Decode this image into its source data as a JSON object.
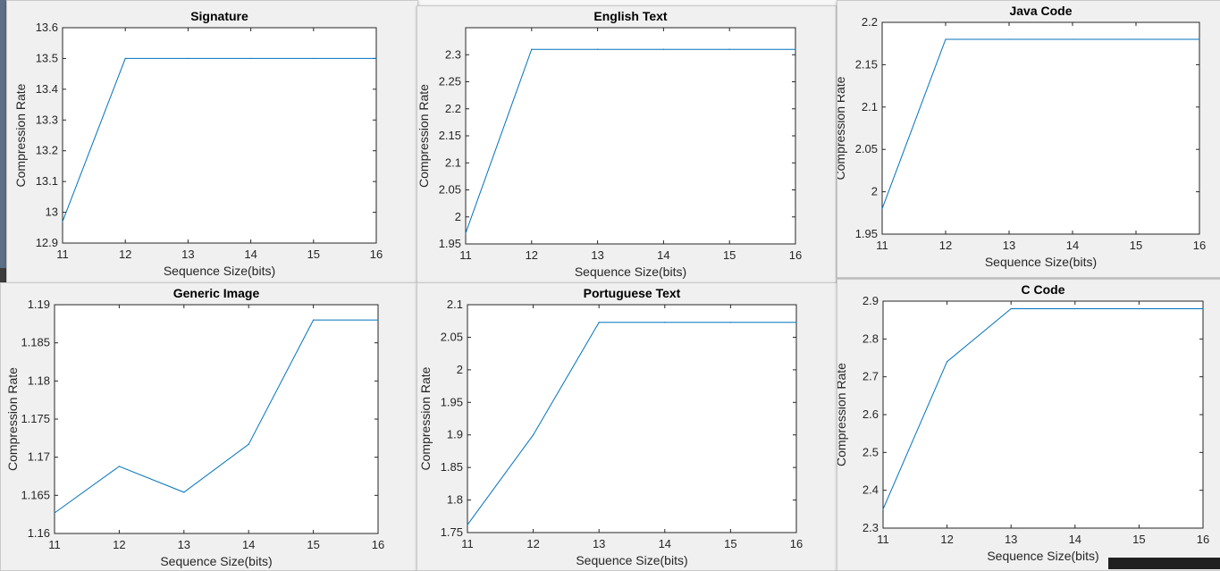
{
  "colors": {
    "line": "#0072bd",
    "axes": "#262626",
    "plot_bg": "#ffffff",
    "figure_bg": "#f0f0f0"
  },
  "chart_data": [
    {
      "id": "signature",
      "type": "line",
      "title": "Signature",
      "xlabel": "Sequence Size(bits)",
      "ylabel": "Compression Rate",
      "x": [
        11,
        12,
        13,
        14,
        15,
        16
      ],
      "series": [
        {
          "values": [
            12.97,
            13.5,
            13.5,
            13.5,
            13.5,
            13.5
          ]
        }
      ],
      "xlim": [
        11,
        16
      ],
      "ylim": [
        12.9,
        13.6
      ],
      "xticks": [
        "11",
        "12",
        "13",
        "14",
        "15",
        "16"
      ],
      "yticks": [
        "12.9",
        "13",
        "13.1",
        "13.2",
        "13.3",
        "13.4",
        "13.5",
        "13.6"
      ],
      "grid": false
    },
    {
      "id": "english-text",
      "type": "line",
      "title": "English Text",
      "xlabel": "Sequence Size(bits)",
      "ylabel": "Compression Rate",
      "x": [
        11,
        12,
        13,
        14,
        15,
        16
      ],
      "series": [
        {
          "values": [
            1.97,
            2.31,
            2.31,
            2.31,
            2.31,
            2.31
          ]
        }
      ],
      "xlim": [
        11,
        16
      ],
      "ylim": [
        1.95,
        2.35
      ],
      "xticks": [
        "11",
        "12",
        "13",
        "14",
        "15",
        "16"
      ],
      "yticks": [
        "1.95",
        "2",
        "2.05",
        "2.1",
        "2.15",
        "2.2",
        "2.25",
        "2.3"
      ],
      "grid": false
    },
    {
      "id": "java-code",
      "type": "line",
      "title": "Java Code",
      "xlabel": "Sequence Size(bits)",
      "ylabel": "Compression Rate",
      "x": [
        11,
        12,
        13,
        14,
        15,
        16
      ],
      "series": [
        {
          "values": [
            1.98,
            2.18,
            2.18,
            2.18,
            2.18,
            2.18
          ]
        }
      ],
      "xlim": [
        11,
        16
      ],
      "ylim": [
        1.95,
        2.2
      ],
      "xticks": [
        "11",
        "12",
        "13",
        "14",
        "15",
        "16"
      ],
      "yticks": [
        "1.95",
        "2",
        "2.05",
        "2.1",
        "2.15",
        "2.2"
      ],
      "grid": false
    },
    {
      "id": "generic-image",
      "type": "line",
      "title": "Generic Image",
      "xlabel": "Sequence Size(bits)",
      "ylabel": "Compression Rate",
      "x": [
        11,
        12,
        13,
        14,
        15,
        16
      ],
      "series": [
        {
          "values": [
            1.1627,
            1.1688,
            1.1654,
            1.1717,
            1.188,
            1.188
          ]
        }
      ],
      "xlim": [
        11,
        16
      ],
      "ylim": [
        1.16,
        1.19
      ],
      "xticks": [
        "11",
        "12",
        "13",
        "14",
        "15",
        "16"
      ],
      "yticks": [
        "1.16",
        "1.165",
        "1.17",
        "1.175",
        "1.18",
        "1.185",
        "1.19"
      ],
      "grid": false
    },
    {
      "id": "portuguese-text",
      "type": "line",
      "title": "Portuguese Text",
      "xlabel": "Sequence Size(bits)",
      "ylabel": "Compression Rate",
      "x": [
        11,
        12,
        13,
        14,
        15,
        16
      ],
      "series": [
        {
          "values": [
            1.762,
            1.9,
            2.073,
            2.073,
            2.073,
            2.073
          ]
        }
      ],
      "xlim": [
        11,
        16
      ],
      "ylim": [
        1.75,
        2.1
      ],
      "xticks": [
        "11",
        "12",
        "13",
        "14",
        "15",
        "16"
      ],
      "yticks": [
        "1.75",
        "1.8",
        "1.85",
        "1.9",
        "1.95",
        "2",
        "2.05",
        "2.1"
      ],
      "grid": false
    },
    {
      "id": "c-code",
      "type": "line",
      "title": "C Code",
      "xlabel": "Sequence Size(bits)",
      "ylabel": "Compression Rate",
      "x": [
        11,
        12,
        13,
        14,
        15,
        16
      ],
      "series": [
        {
          "values": [
            2.35,
            2.74,
            2.88,
            2.88,
            2.88,
            2.88
          ]
        }
      ],
      "xlim": [
        11,
        16
      ],
      "ylim": [
        2.3,
        2.9
      ],
      "xticks": [
        "11",
        "12",
        "13",
        "14",
        "15",
        "16"
      ],
      "yticks": [
        "2.3",
        "2.4",
        "2.5",
        "2.6",
        "2.7",
        "2.8",
        "2.9"
      ],
      "grid": false
    }
  ]
}
